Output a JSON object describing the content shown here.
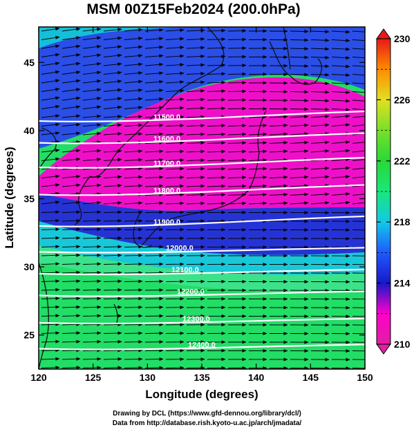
{
  "title": "MSM 00Z15Feb2024 (200.0hPa)",
  "x_axis": {
    "label": "Longitude (degrees)",
    "range": [
      120,
      150
    ],
    "ticks": [
      "120",
      "125",
      "130",
      "135",
      "140",
      "145",
      "150"
    ]
  },
  "y_axis": {
    "label": "Latitude  (degrees)",
    "range": [
      22.5,
      47.6
    ],
    "ticks": [
      "25",
      "30",
      "35",
      "40",
      "45"
    ]
  },
  "colorbar": {
    "min": 210,
    "max": 230,
    "ticks": [
      "230",
      "226",
      "222",
      "218",
      "214",
      "210"
    ],
    "colors": [
      "#e020a0",
      "#ff00cc",
      "#1818c8",
      "#1e5aff",
      "#12c8e8",
      "#18e878",
      "#28d838",
      "#78e028",
      "#e0e020",
      "#ff8c00",
      "#e81818"
    ]
  },
  "contours": [
    {
      "label": "11500.0",
      "lat": 40.7
    },
    {
      "label": "11600.0",
      "lat": 39.1
    },
    {
      "label": "11700.0",
      "lat": 37.3
    },
    {
      "label": "11800.0",
      "lat": 35.3
    },
    {
      "label": "11900.0",
      "lat": 33.0
    },
    {
      "label": "12000.0",
      "lat": 31.1
    },
    {
      "label": "12100.0",
      "lat": 29.5
    },
    {
      "label": "12200.0",
      "lat": 27.9
    },
    {
      "label": "12300.0",
      "lat": 25.9
    },
    {
      "label": "12400.0",
      "lat": 24.0
    }
  ],
  "credits": {
    "line1": "Drawing by DCL (https://www.gfd-dennou.org/library/dcl/)",
    "line2": "Data from http://database.rish.kyoto-u.ac.jp/arch/jmadata/"
  }
}
